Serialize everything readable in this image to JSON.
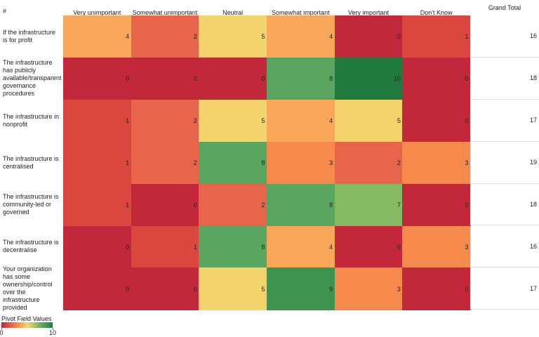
{
  "chart_data": {
    "type": "heatmap",
    "corner_label": "#",
    "columns": [
      "Very unimportant",
      "Somewhat unimportant",
      "Neutral",
      "Somewhat important",
      "Very important",
      "Don't Know"
    ],
    "rows": [
      "If the infrastructure is for profit",
      "The infrastructure has publicly available/transparent governance procedures",
      "The infrastructure in nonprofit",
      "The infrastructure is centralised",
      "The infrastructure is community-led or governed",
      "The infrastructure is decentralise",
      "Your organization has some ownership/control over the infrastructure provided"
    ],
    "values": [
      [
        4,
        2,
        5,
        4,
        0,
        1
      ],
      [
        0,
        0,
        0,
        8,
        10,
        0
      ],
      [
        1,
        2,
        5,
        4,
        5,
        0
      ],
      [
        1,
        2,
        8,
        3,
        2,
        3
      ],
      [
        1,
        0,
        2,
        8,
        7,
        0
      ],
      [
        0,
        1,
        8,
        4,
        0,
        3
      ],
      [
        0,
        0,
        5,
        9,
        3,
        0
      ]
    ],
    "totals_title": "Grand Total",
    "totals": [
      16,
      18,
      17,
      19,
      18,
      16,
      17
    ],
    "legend_title": "Pivot Field Values",
    "color_range": [
      0,
      10
    ],
    "color_ticks": [
      0,
      10
    ],
    "colors": [
      "#c2283a",
      "#d9473f",
      "#e7654a",
      "#f58a4c",
      "#f9a85a",
      "#f2d36c",
      "#c0cc68",
      "#86ba60",
      "#5aa55f",
      "#3e944f",
      "#207a40"
    ]
  }
}
